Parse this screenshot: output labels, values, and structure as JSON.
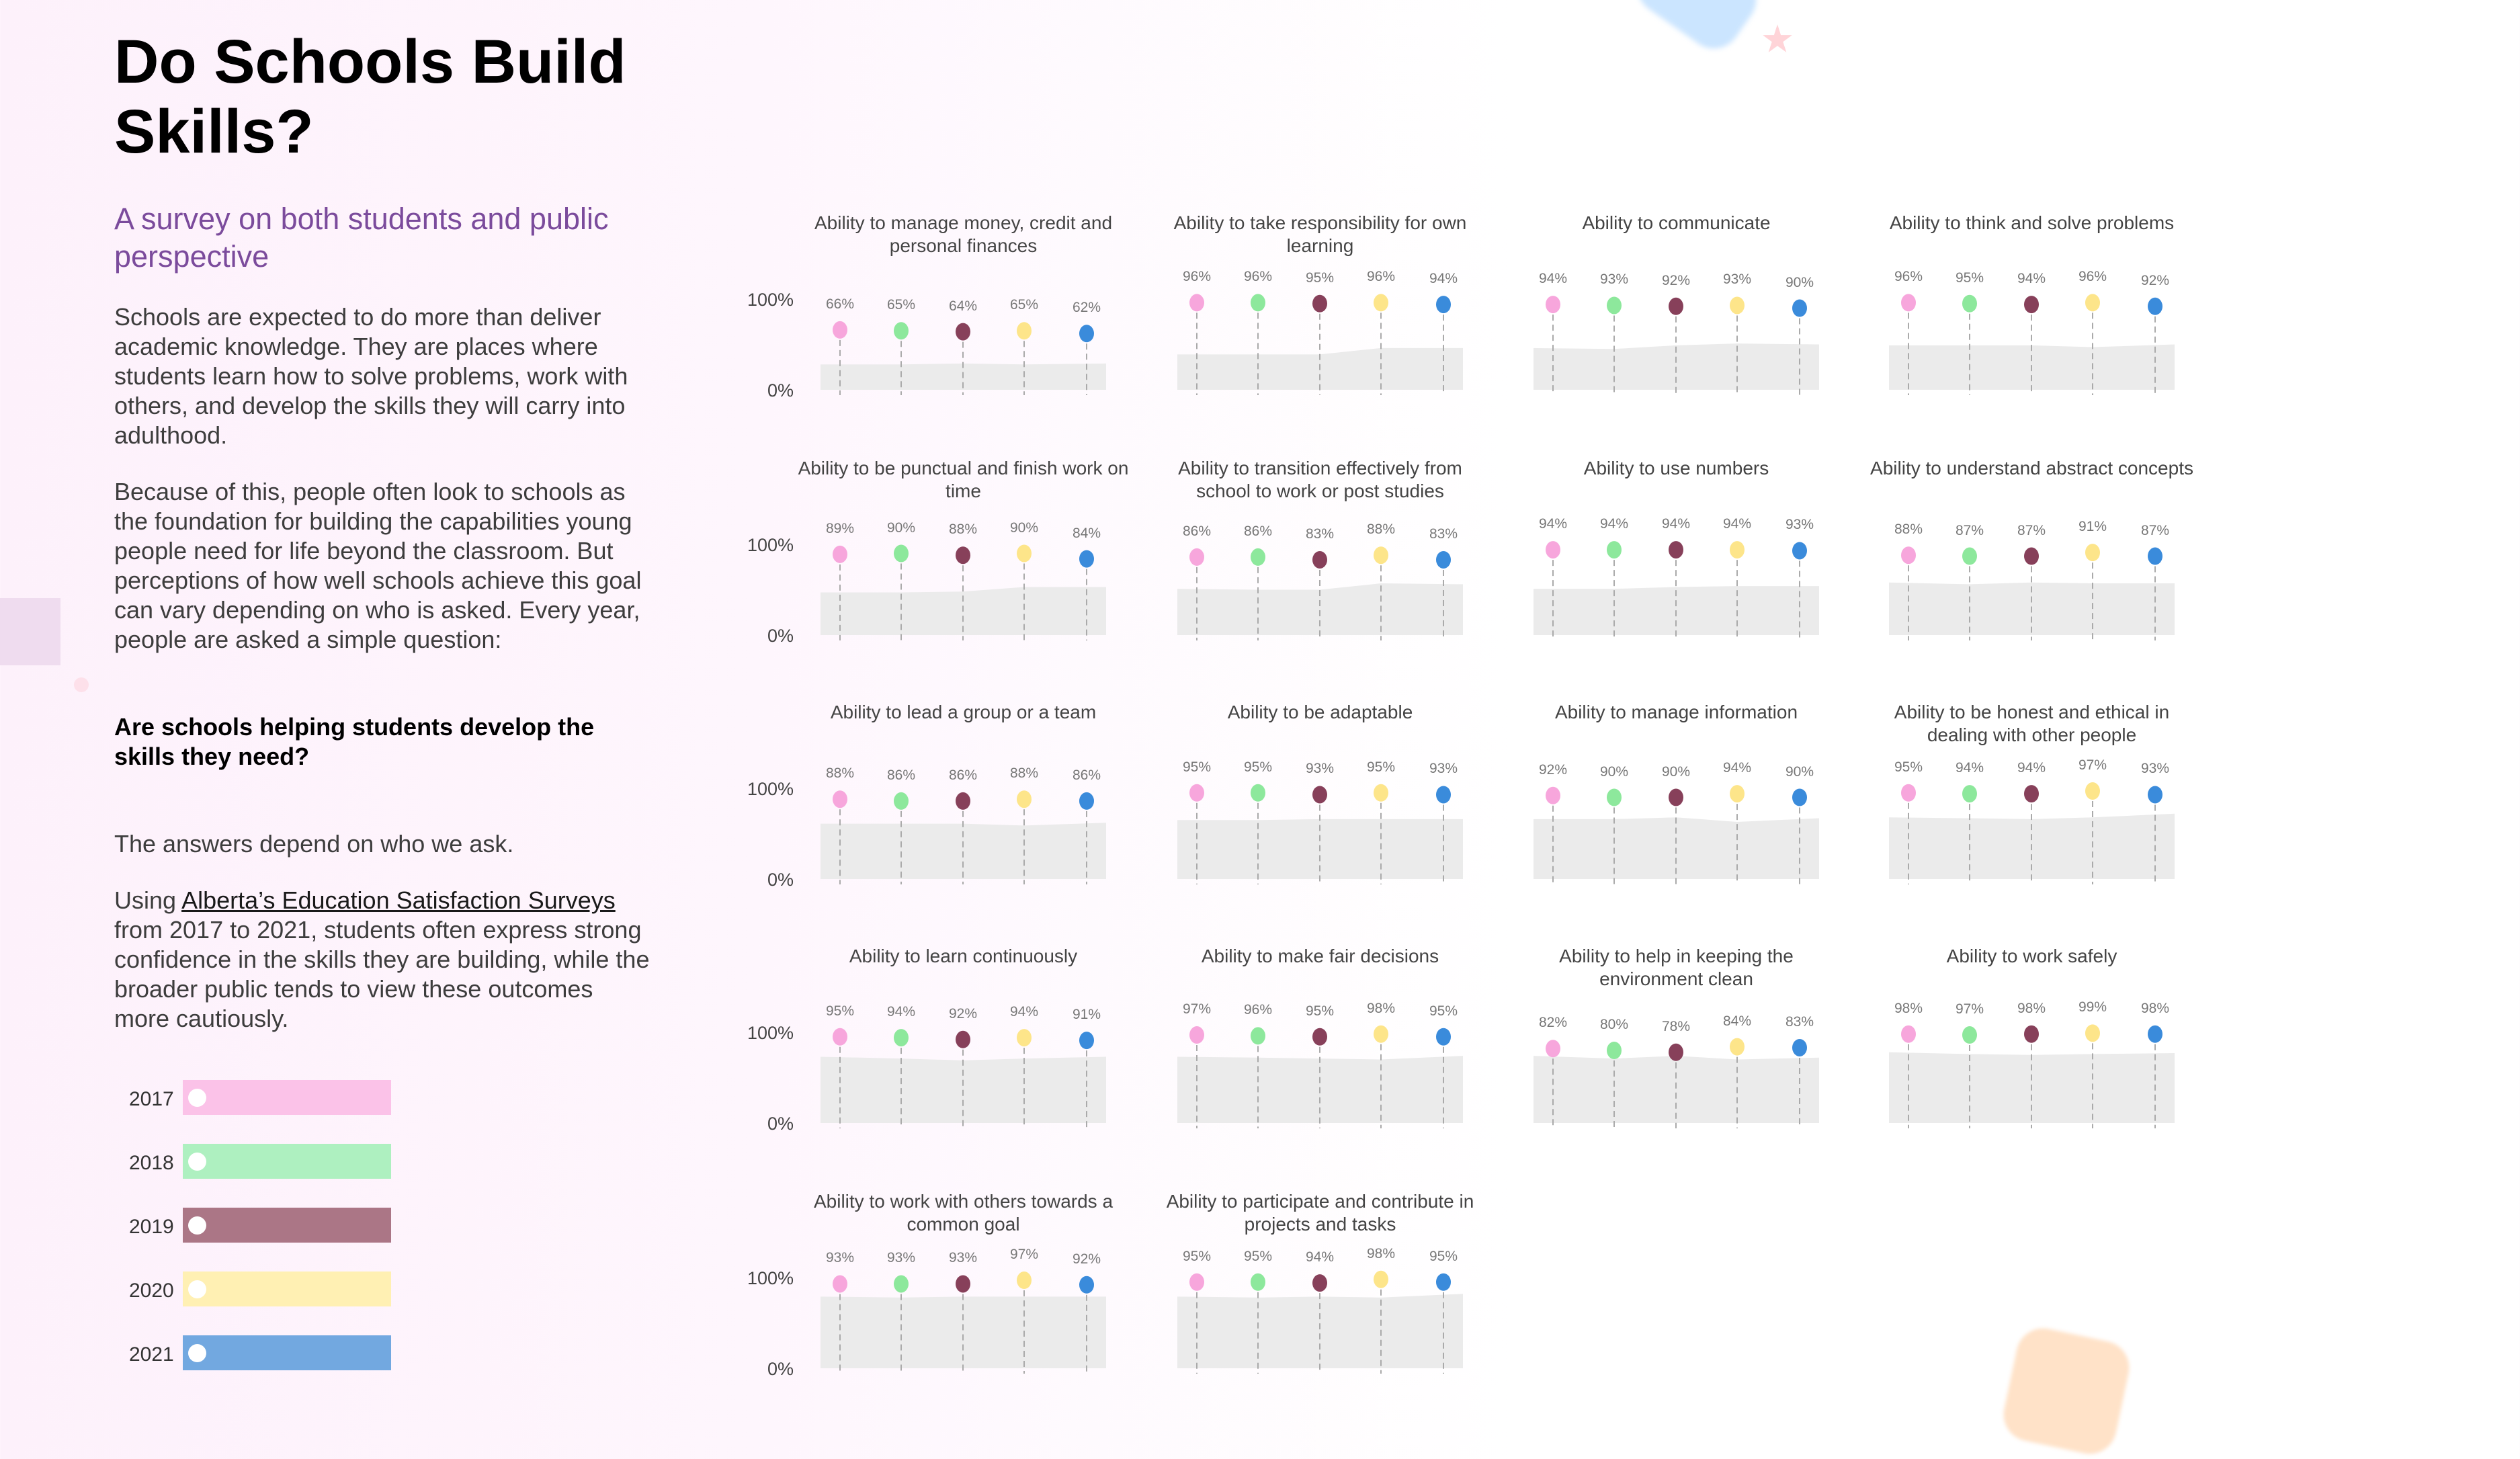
{
  "title": "Do Schools Build Skills?",
  "subtitle": "A survey on both students and public perspective",
  "paragraphs": [
    "Schools are expected to do more than deliver academic knowledge. They are places where students learn how to solve problems, work with others, and develop the skills they will carry into adulthood.",
    "Because of this, people often look to schools as the foundation for building the capabilities young people need for life beyond the classroom. But perceptions of how well schools achieve this goal can vary depending on who is asked. Every year, people are asked a simple question:"
  ],
  "question": "Are schools helping students develop the skills they need?",
  "answer": "The answers depend on who we ask.",
  "closing": {
    "prefix": "Using ",
    "link": "Alberta’s Education Satisfaction Surveys",
    "suffix": " from 2017 to 2021, students often express strong confidence in the skills they are building, while the broader public tends to view these outcomes more cautiously."
  },
  "legend": [
    {
      "year": "2017",
      "color": "#fbc2e8"
    },
    {
      "year": "2018",
      "color": "#aef0c0"
    },
    {
      "year": "2019",
      "color": "#ab7686"
    },
    {
      "year": "2020",
      "color": "#fff0b3"
    },
    {
      "year": "2021",
      "color": "#72a8e0"
    }
  ],
  "chart_data": {
    "type": "scatter",
    "years": [
      "2017",
      "2018",
      "2019",
      "2020",
      "2021"
    ],
    "dot_colors": [
      "#f7a6dc",
      "#8de89c",
      "#87405a",
      "#fde58a",
      "#3a8bdb"
    ],
    "area_color": "#ebebeb",
    "yticks": [
      "100%",
      "0%"
    ],
    "ylim": [
      0,
      100
    ],
    "panels": [
      {
        "title": "Ability to manage money, credit and personal finances",
        "values": [
          66,
          65,
          64,
          65,
          62
        ],
        "area": [
          28,
          28,
          29,
          28,
          29
        ]
      },
      {
        "title": "Ability to take responsibility for own learning",
        "values": [
          96,
          96,
          95,
          96,
          94
        ],
        "area": [
          39,
          39,
          39,
          46,
          46
        ]
      },
      {
        "title": "Ability to communicate",
        "values": [
          94,
          93,
          92,
          93,
          90
        ],
        "area": [
          46,
          45,
          49,
          51,
          50
        ]
      },
      {
        "title": "Ability to think and solve problems",
        "values": [
          96,
          95,
          94,
          96,
          92
        ],
        "area": [
          49,
          49,
          49,
          47,
          50
        ]
      },
      {
        "title": "Ability to be punctual and finish work on time",
        "values": [
          89,
          90,
          88,
          90,
          84
        ],
        "area": [
          47,
          47,
          48,
          53,
          53
        ]
      },
      {
        "title": "Ability to transition effectively from school to work or post studies",
        "values": [
          86,
          86,
          83,
          88,
          83
        ],
        "area": [
          51,
          50,
          50,
          57,
          56
        ]
      },
      {
        "title": "Ability to use numbers",
        "values": [
          94,
          94,
          94,
          94,
          93
        ],
        "area": [
          51,
          51,
          53,
          54,
          54
        ]
      },
      {
        "title": "Ability to understand abstract concepts",
        "values": [
          88,
          87,
          87,
          91,
          87
        ],
        "area": [
          58,
          56,
          58,
          57,
          57
        ]
      },
      {
        "title": "Ability to lead a group or a team",
        "values": [
          88,
          86,
          86,
          88,
          86
        ],
        "area": [
          61,
          61,
          61,
          59,
          62
        ]
      },
      {
        "title": "Ability to be adaptable",
        "values": [
          95,
          95,
          93,
          95,
          93
        ],
        "area": [
          65,
          65,
          66,
          66,
          66
        ]
      },
      {
        "title": "Ability to manage information",
        "values": [
          92,
          90,
          90,
          94,
          90
        ],
        "area": [
          66,
          66,
          68,
          63,
          67
        ]
      },
      {
        "title": "Ability to be honest and ethical in dealing with other people",
        "values": [
          95,
          94,
          94,
          97,
          93
        ],
        "area": [
          68,
          67,
          66,
          68,
          72
        ]
      },
      {
        "title": "Ability to learn continuously",
        "values": [
          95,
          94,
          92,
          94,
          91
        ],
        "area": [
          73,
          71,
          69,
          71,
          73
        ]
      },
      {
        "title": "Ability to make fair decisions",
        "values": [
          97,
          96,
          95,
          98,
          95
        ],
        "area": [
          73,
          72,
          71,
          70,
          74
        ]
      },
      {
        "title": "Ability to help in keeping the environment clean",
        "values": [
          82,
          80,
          78,
          84,
          83
        ],
        "area": [
          74,
          71,
          74,
          70,
          72
        ]
      },
      {
        "title": "Ability to work safely",
        "values": [
          98,
          97,
          98,
          99,
          98
        ],
        "area": [
          78,
          76,
          75,
          76,
          77
        ]
      },
      {
        "title": "Ability to work with others towards a common goal",
        "values": [
          93,
          93,
          93,
          97,
          92
        ],
        "area": [
          79,
          78,
          79,
          79,
          79
        ]
      },
      {
        "title": "Ability to participate and contribute in projects and tasks",
        "values": [
          95,
          95,
          94,
          98,
          95
        ],
        "area": [
          79,
          78,
          79,
          78,
          82
        ]
      }
    ]
  }
}
